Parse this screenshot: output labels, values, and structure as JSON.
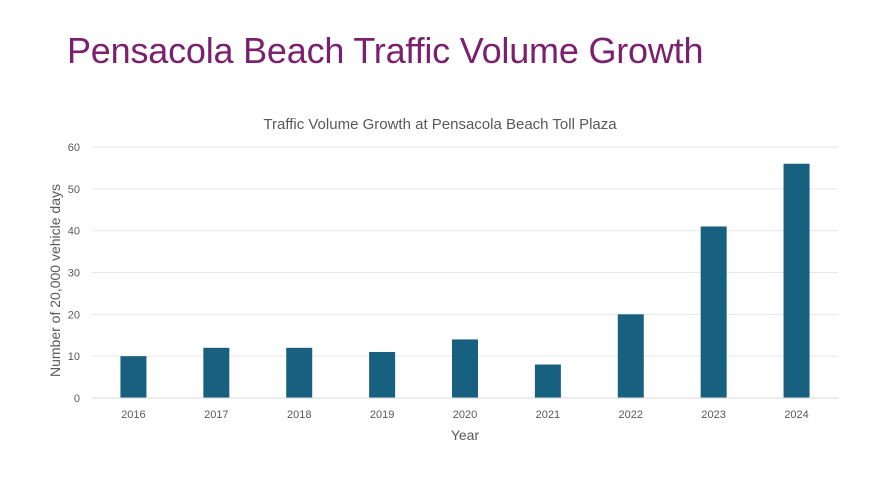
{
  "slide": {
    "title": "Pensacola Beach Traffic Volume Growth"
  },
  "colors": {
    "title": "#7b1f6f",
    "bar": "#17607f",
    "text": "#595959",
    "grid": "#e6e6e6"
  },
  "chart_data": {
    "type": "bar",
    "title": "Traffic Volume Growth at Pensacola Beach Toll Plaza",
    "xlabel": "Year",
    "ylabel": "Number of 20,000 vehicle days",
    "categories": [
      "2016",
      "2017",
      "2018",
      "2019",
      "2020",
      "2021",
      "2022",
      "2023",
      "2024"
    ],
    "series": [
      {
        "name": "Traffic Volume",
        "values": [
          10,
          12,
          12,
          11,
          14,
          8,
          20,
          41,
          56
        ]
      }
    ],
    "ylim": [
      0,
      60
    ],
    "yticks": [
      0,
      10,
      20,
      30,
      40,
      50,
      60
    ],
    "grid": true,
    "legend": "none"
  }
}
